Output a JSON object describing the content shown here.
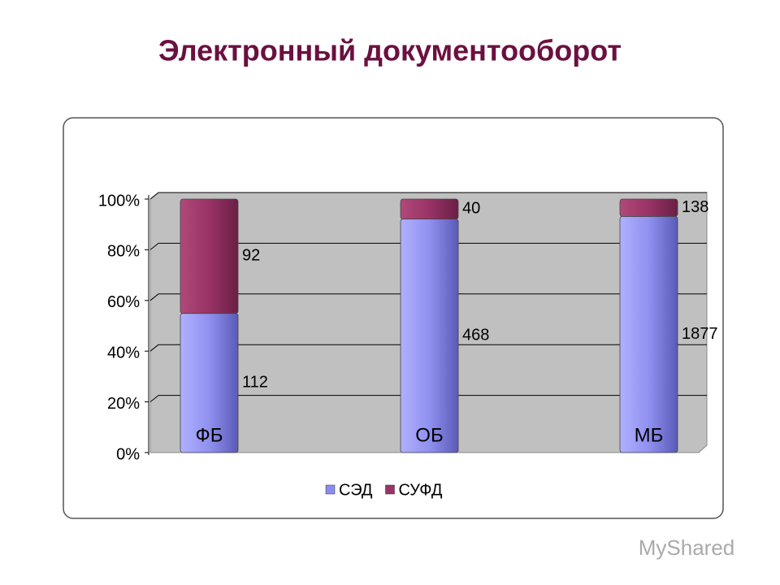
{
  "chart_data": {
    "type": "bar",
    "stack": "percent",
    "title": "Электронный документооборот",
    "categories": [
      "ФБ",
      "ОБ",
      "МБ"
    ],
    "series": [
      {
        "name": "СЭД",
        "color": "#8c8cf0",
        "values": [
          112,
          468,
          1877
        ]
      },
      {
        "name": "СУФД",
        "color": "#993366",
        "values": [
          92,
          40,
          138
        ]
      }
    ],
    "ylim": [
      0,
      100
    ],
    "yticks": [
      {
        "value": 0,
        "label": "0%"
      },
      {
        "value": 20,
        "label": "20%"
      },
      {
        "value": 40,
        "label": "40%"
      },
      {
        "value": 60,
        "label": "60%"
      },
      {
        "value": 80,
        "label": "80%"
      },
      {
        "value": 100,
        "label": "100%"
      }
    ],
    "grid": true,
    "legend": "bottom"
  },
  "watermark": "MyShared"
}
